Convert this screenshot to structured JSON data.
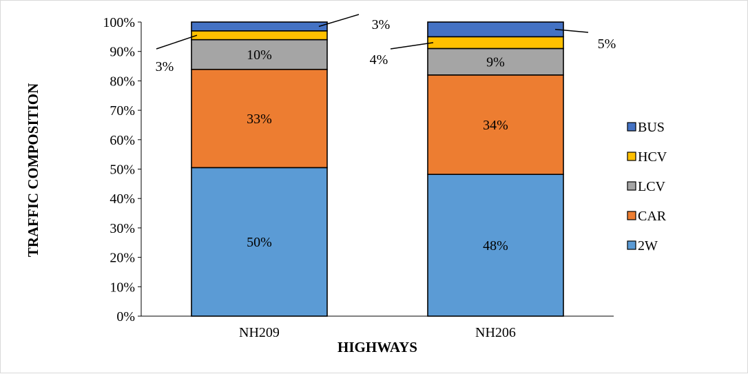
{
  "chart_data": {
    "type": "bar",
    "stacked": true,
    "percent_stacked": true,
    "title": "",
    "xlabel": "HIGHWAYS",
    "ylabel": "TRAFFIC COMPOSITION",
    "categories": [
      "NH209",
      "NH206"
    ],
    "ylim": [
      0,
      100
    ],
    "yticks": [
      "0%",
      "10%",
      "20%",
      "30%",
      "40%",
      "50%",
      "60%",
      "70%",
      "80%",
      "90%",
      "100%"
    ],
    "series": [
      {
        "name": "2W",
        "color": "#5b9bd5",
        "values": [
          50.5,
          48.2
        ],
        "labels": [
          "50%",
          "48%"
        ]
      },
      {
        "name": "CAR",
        "color": "#ed7d31",
        "values": [
          33.4,
          33.8
        ],
        "labels": [
          "33%",
          "34%"
        ]
      },
      {
        "name": "LCV",
        "color": "#a5a5a5",
        "values": [
          10.1,
          9.0
        ],
        "labels": [
          "10%",
          "9%"
        ]
      },
      {
        "name": "HCV",
        "color": "#ffc000",
        "values": [
          3.0,
          4.0
        ],
        "labels": [
          "3%",
          "4%"
        ]
      },
      {
        "name": "BUS",
        "color": "#4472c4",
        "values": [
          3.0,
          5.0
        ],
        "labels": [
          "3%",
          "5%"
        ]
      }
    ],
    "legend_position": "right",
    "legend_order": [
      "BUS",
      "HCV",
      "LCV",
      "CAR",
      "2W"
    ],
    "grid": false
  }
}
